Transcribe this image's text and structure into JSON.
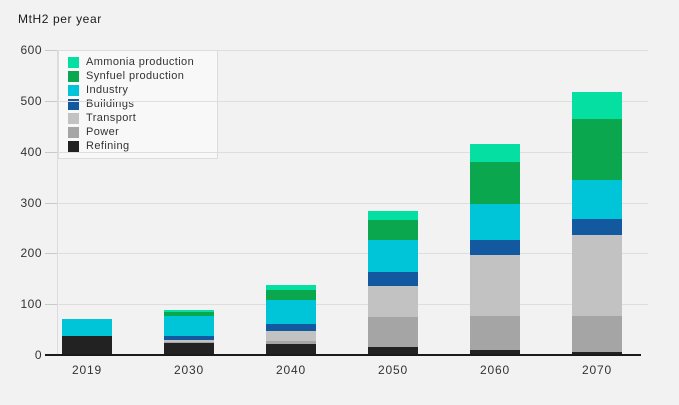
{
  "chart_data": {
    "type": "bar",
    "stacked": true,
    "title": "MtH2 per year",
    "xlabel": "",
    "ylabel": "MtH2 per year",
    "categories": [
      "2019",
      "2030",
      "2040",
      "2050",
      "2060",
      "2070"
    ],
    "series": [
      {
        "name": "Refining",
        "color": "#222222",
        "values": [
          37,
          23,
          22,
          16,
          10,
          6
        ]
      },
      {
        "name": "Power",
        "color": "#a5a5a5",
        "values": [
          0,
          3,
          5,
          58,
          67,
          71
        ]
      },
      {
        "name": "Transport",
        "color": "#c2c2c2",
        "values": [
          0,
          4,
          20,
          62,
          119,
          160
        ]
      },
      {
        "name": "Buildings",
        "color": "#1259a0",
        "values": [
          0,
          7,
          14,
          28,
          31,
          30
        ]
      },
      {
        "name": "Industry",
        "color": "#00c5d8",
        "values": [
          34,
          39,
          48,
          63,
          71,
          78
        ]
      },
      {
        "name": "Synfuel production",
        "color": "#0aa74e",
        "values": [
          0,
          8,
          18,
          39,
          81,
          119
        ]
      },
      {
        "name": "Ammonia production",
        "color": "#06dfa2",
        "values": [
          0,
          4,
          10,
          18,
          36,
          54
        ]
      }
    ],
    "totals": [
      71,
      88,
      137,
      284,
      415,
      518
    ],
    "legend_order_top_to_bottom": [
      "Ammonia production",
      "Synfuel production",
      "Industry",
      "Buildings",
      "Transport",
      "Power",
      "Refining"
    ],
    "legend_position": "upper-left-inside",
    "y_ticks": [
      0,
      100,
      200,
      300,
      400,
      500,
      600
    ],
    "ylim": [
      0,
      600
    ],
    "grid": true,
    "colors": {
      "background": "#f2f2f2",
      "gridline": "#dedede",
      "axis_line": "#1a1a1a",
      "tick_text": "#333333",
      "title_text": "#1a1a1a",
      "legend_background": "#f8f8f8",
      "legend_border": "#dcdcdc"
    }
  }
}
